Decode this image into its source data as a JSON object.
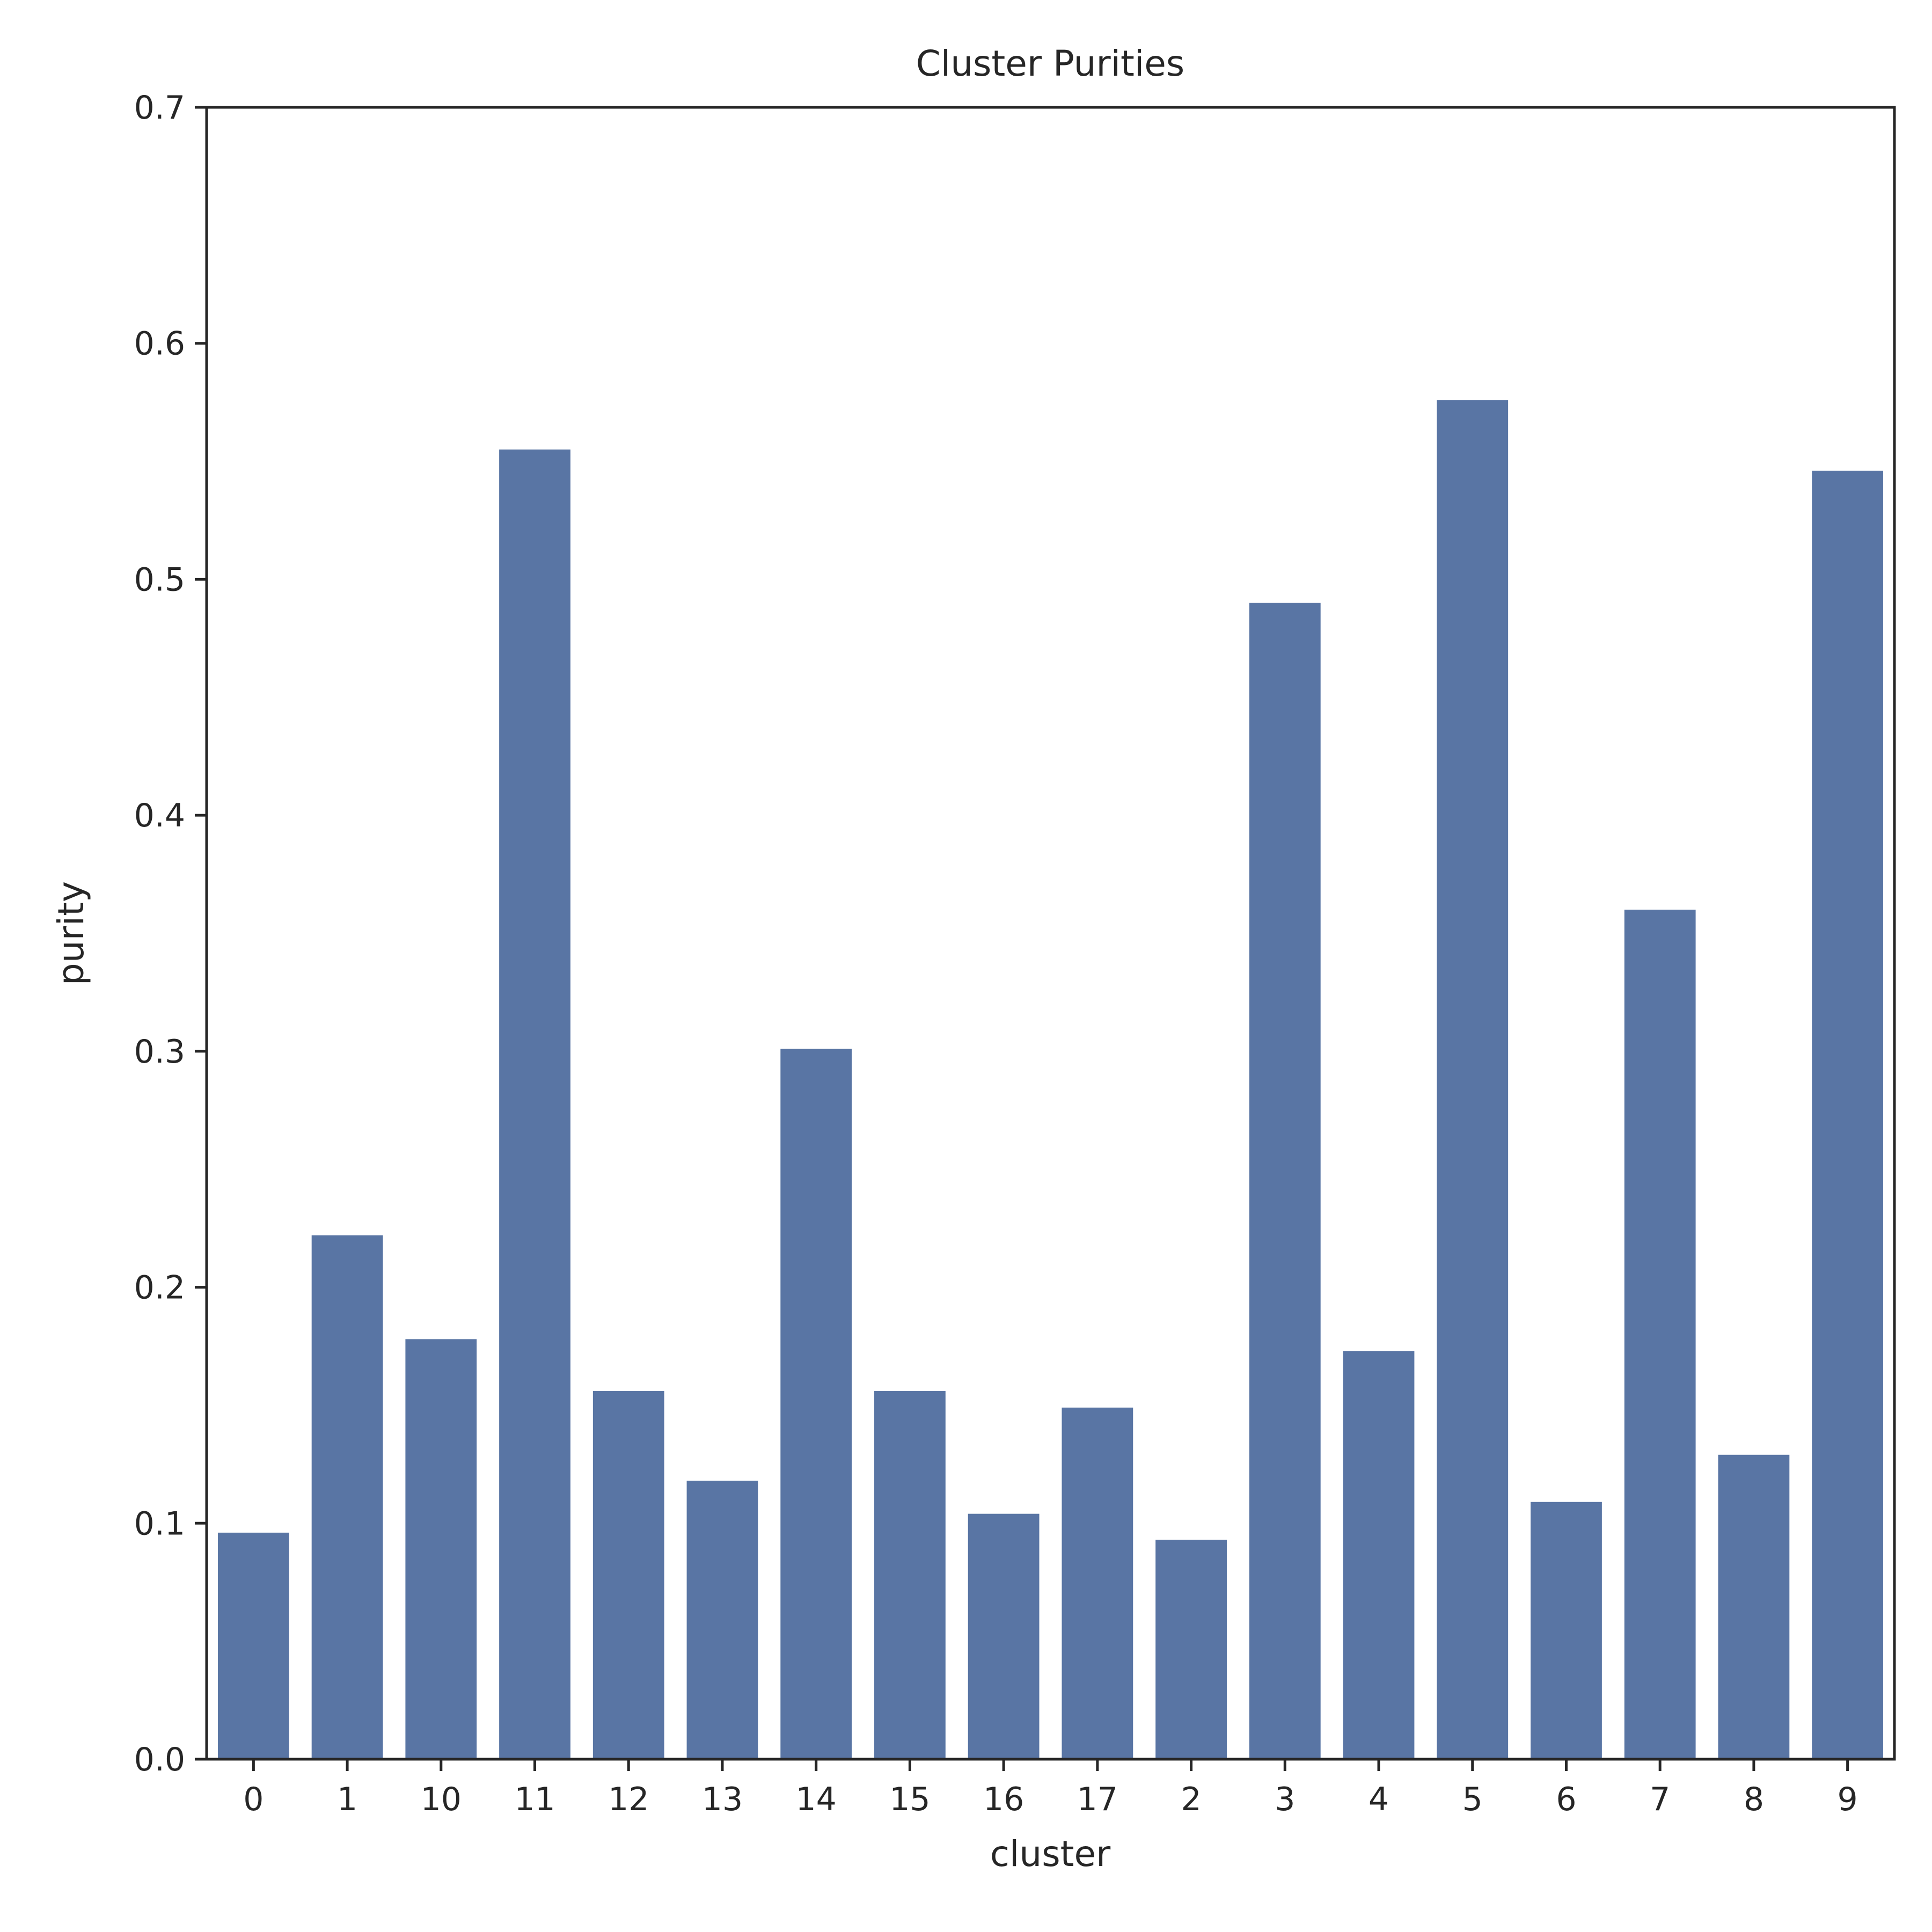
{
  "chart_data": {
    "type": "bar",
    "title": "Cluster Purities",
    "xlabel": "cluster",
    "ylabel": "purity",
    "categories": [
      "0",
      "1",
      "10",
      "11",
      "12",
      "13",
      "14",
      "15",
      "16",
      "17",
      "2",
      "3",
      "4",
      "5",
      "6",
      "7",
      "8",
      "9"
    ],
    "values": [
      0.096,
      0.222,
      0.178,
      0.555,
      0.156,
      0.118,
      0.301,
      0.156,
      0.104,
      0.149,
      0.093,
      0.49,
      0.173,
      0.576,
      0.109,
      0.36,
      0.129,
      0.546
    ],
    "ylim": [
      0,
      0.7
    ],
    "yticks": [
      "0.0",
      "0.1",
      "0.2",
      "0.3",
      "0.4",
      "0.5",
      "0.6",
      "0.7"
    ],
    "bar_color": "#5975a4",
    "grid": false
  }
}
